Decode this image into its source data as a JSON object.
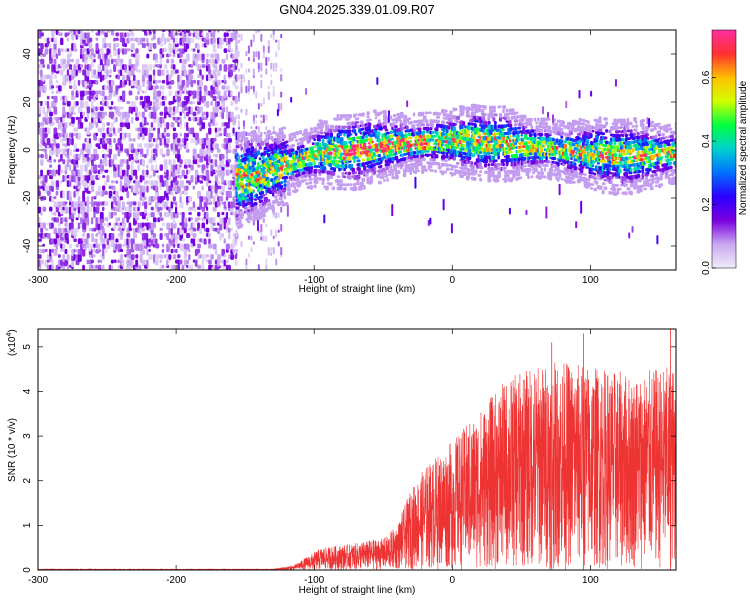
{
  "title": "GN04.2025.339.01.09.R07",
  "charts": [
    {
      "type": "heatmap",
      "xlabel": "Height of straight line (km)",
      "ylabel": "Frequency (Hz)",
      "xlim": [
        -300,
        162
      ],
      "ylim": [
        -50,
        50
      ],
      "xticks": [
        -300,
        -200,
        -100,
        0,
        100
      ],
      "yticks": [
        -40,
        -20,
        0,
        20,
        40
      ],
      "grid": false,
      "colorbar": {
        "label": "Normalized spectral amplitude",
        "range": [
          0,
          0.75
        ],
        "ticks": [
          0.0,
          0.2,
          0.4,
          0.6
        ],
        "colormap": [
          "#f0ecf8",
          "#c8a8f0",
          "#7a00e0",
          "#2a00ff",
          "#0070ff",
          "#00d0d0",
          "#00ff40",
          "#d0ff00",
          "#ffc000",
          "#ff3030",
          "#ff30a0"
        ]
      },
      "bands": [
        {
          "x_range": [
            -300,
            -157
          ],
          "description": "broadband noise",
          "level": 0.08
        },
        {
          "x_range": [
            -157,
            -123
          ],
          "description": "transition",
          "level": 0.15
        },
        {
          "x_range": [
            -123,
            162
          ],
          "description": "signal band around 0 Hz",
          "center_hz": 0,
          "half_width_hz": 8,
          "peak_level": 0.7
        }
      ]
    },
    {
      "type": "line",
      "xlabel": "Height of straight line (km)",
      "ylabel": "SNR (10 * v/v)",
      "y_multiplier": "(x10",
      "y_multiplier_exp": "4",
      "multiplier_close": ")",
      "xlim": [
        -300,
        162
      ],
      "ylim": [
        0,
        5.4
      ],
      "xticks": [
        -300,
        -200,
        -100,
        0,
        100
      ],
      "yticks": [
        0,
        1,
        2,
        3,
        4,
        5
      ],
      "color": "#ee3333",
      "envelope": [
        {
          "x": -300,
          "y": 0.02
        },
        {
          "x": -130,
          "y": 0.02
        },
        {
          "x": -115,
          "y": 0.1
        },
        {
          "x": -95,
          "y": 0.5
        },
        {
          "x": -70,
          "y": 0.6
        },
        {
          "x": -55,
          "y": 0.7
        },
        {
          "x": -50,
          "y": 0.7
        },
        {
          "x": -40,
          "y": 1.0
        },
        {
          "x": -30,
          "y": 1.8
        },
        {
          "x": -20,
          "y": 2.3
        },
        {
          "x": 0,
          "y": 2.9
        },
        {
          "x": 20,
          "y": 3.6
        },
        {
          "x": 40,
          "y": 4.3
        },
        {
          "x": 60,
          "y": 4.6
        },
        {
          "x": 80,
          "y": 4.7
        },
        {
          "x": 100,
          "y": 4.6
        },
        {
          "x": 130,
          "y": 4.4
        },
        {
          "x": 162,
          "y": 4.6
        }
      ],
      "peaks": [
        {
          "x": 72,
          "y": 5.1
        },
        {
          "x": 95,
          "y": 5.3
        },
        {
          "x": 158,
          "y": 5.4
        }
      ]
    }
  ]
}
